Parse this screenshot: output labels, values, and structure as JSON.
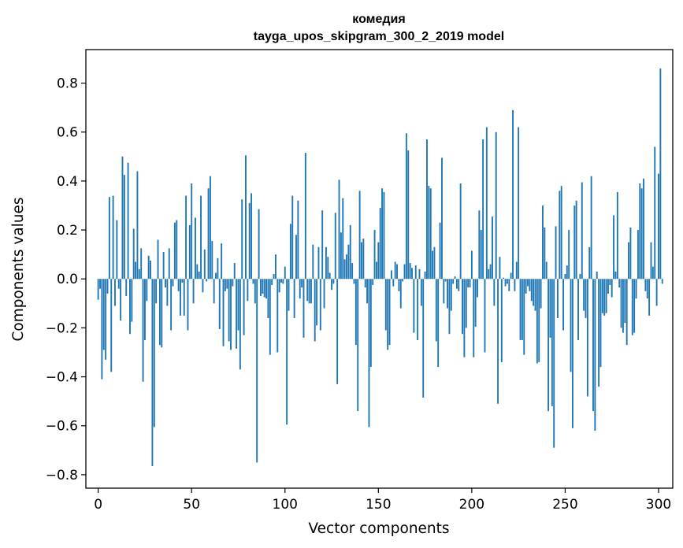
{
  "chart_data": {
    "type": "bar",
    "title": "комедия",
    "subtitle": "tayga_upos_skipgram_300_2_2019 model",
    "xlabel": "Vector components",
    "ylabel": "Components values",
    "xlim": [
      -6.6,
      307.6
    ],
    "ylim": [
      -0.855,
      0.937
    ],
    "xticks": [
      0,
      50,
      100,
      150,
      200,
      250,
      300
    ],
    "yticks": [
      -0.8,
      -0.6,
      -0.4,
      -0.2,
      0.0,
      0.2,
      0.4,
      0.6,
      0.8
    ],
    "ytick_labels": [
      "−0.8",
      "−0.6",
      "−0.4",
      "−0.2",
      "0.0",
      "0.2",
      "0.4",
      "0.6",
      "0.8"
    ],
    "xtick_labels": [
      "0",
      "50",
      "100",
      "150",
      "200",
      "250",
      "300"
    ],
    "bar_color": "#1f77b4",
    "values": [
      -0.085,
      -0.04,
      -0.41,
      -0.29,
      -0.33,
      -0.06,
      0.335,
      -0.38,
      0.34,
      -0.11,
      0.24,
      -0.04,
      -0.17,
      0.5,
      0.425,
      -0.07,
      0.475,
      -0.225,
      -0.175,
      0.205,
      0.07,
      0.44,
      0.04,
      0.125,
      -0.42,
      -0.25,
      -0.09,
      0.095,
      0.075,
      -0.765,
      -0.605,
      -0.1,
      0.16,
      -0.27,
      -0.28,
      0.11,
      -0.035,
      -0.11,
      0.125,
      -0.21,
      -0.03,
      0.23,
      0.24,
      -0.05,
      -0.15,
      -0.015,
      -0.15,
      0.34,
      -0.21,
      0.22,
      0.39,
      -0.1,
      0.25,
      0.06,
      0.03,
      0.34,
      -0.055,
      0.12,
      -0.01,
      0.37,
      0.42,
      0.155,
      -0.1,
      0.025,
      0.085,
      -0.205,
      0.145,
      -0.275,
      -0.05,
      -0.04,
      -0.255,
      -0.29,
      -0.03,
      0.065,
      -0.285,
      -0.21,
      -0.37,
      0.325,
      -0.23,
      0.505,
      -0.09,
      0.31,
      0.35,
      -0.02,
      -0.1,
      -0.75,
      0.285,
      -0.07,
      -0.06,
      -0.075,
      -0.08,
      -0.16,
      -0.31,
      -0.025,
      0.02,
      0.1,
      -0.3,
      -0.055,
      -0.015,
      -0.02,
      0.05,
      -0.595,
      -0.13,
      0.225,
      0.34,
      -0.16,
      0.18,
      0.32,
      -0.08,
      -0.035,
      -0.24,
      0.515,
      -0.09,
      -0.1,
      -0.1,
      0.14,
      -0.255,
      -0.19,
      0.13,
      -0.21,
      0.28,
      -0.12,
      0.13,
      0.09,
      0.025,
      -0.045,
      -0.02,
      0.27,
      -0.43,
      0.405,
      0.19,
      0.33,
      0.08,
      0.1,
      0.14,
      0.22,
      0.065,
      -0.02,
      -0.27,
      -0.54,
      0.36,
      0.15,
      0.165,
      -0.035,
      -0.1,
      -0.605,
      -0.36,
      -0.025,
      0.2,
      0.07,
      0.15,
      0.29,
      0.37,
      0.355,
      -0.21,
      -0.29,
      -0.27,
      0.035,
      -0.03,
      0.07,
      0.06,
      -0.05,
      -0.12,
      -0.01,
      0.06,
      0.595,
      0.525,
      0.065,
      0.045,
      -0.22,
      0.055,
      -0.25,
      0.04,
      -0.11,
      -0.485,
      0.03,
      0.57,
      0.38,
      0.37,
      0.115,
      0.13,
      -0.255,
      -0.36,
      0.23,
      0.495,
      -0.1,
      -0.01,
      -0.12,
      -0.225,
      -0.13,
      -0.02,
      0.01,
      -0.04,
      -0.05,
      0.39,
      -0.225,
      -0.32,
      -0.2,
      -0.035,
      -0.035,
      0.115,
      -0.32,
      -0.195,
      -0.075,
      0.28,
      0.2,
      0.57,
      -0.3,
      0.62,
      0.04,
      0.06,
      0.255,
      -0.11,
      0.6,
      -0.51,
      0.09,
      -0.34,
      0.005,
      -0.03,
      -0.02,
      -0.05,
      0.025,
      0.69,
      -0.05,
      0.07,
      0.62,
      -0.25,
      -0.25,
      -0.31,
      -0.06,
      -0.03,
      -0.05,
      -0.09,
      -0.11,
      -0.13,
      -0.345,
      -0.34,
      -0.12,
      0.3,
      0.21,
      0.07,
      -0.54,
      -0.24,
      -0.52,
      -0.69,
      0.215,
      -0.16,
      0.36,
      0.38,
      -0.21,
      0.02,
      0.055,
      0.2,
      -0.38,
      -0.61,
      0.3,
      0.32,
      -0.25,
      0.02,
      0.395,
      -0.13,
      -0.16,
      -0.48,
      0.13,
      0.42,
      -0.54,
      -0.62,
      0.03,
      -0.44,
      -0.36,
      -0.14,
      -0.15,
      -0.14,
      -0.06,
      -0.025,
      -0.075,
      0.26,
      0.03,
      0.355,
      -0.035,
      -0.2,
      -0.22,
      -0.18,
      -0.27,
      0.15,
      0.21,
      -0.23,
      -0.22,
      -0.08,
      0.2,
      0.39,
      0.37,
      0.41,
      -0.05,
      -0.08,
      -0.15,
      0.15,
      0.05,
      0.54,
      -0.11,
      0.43,
      0.86,
      -0.02
    ]
  }
}
